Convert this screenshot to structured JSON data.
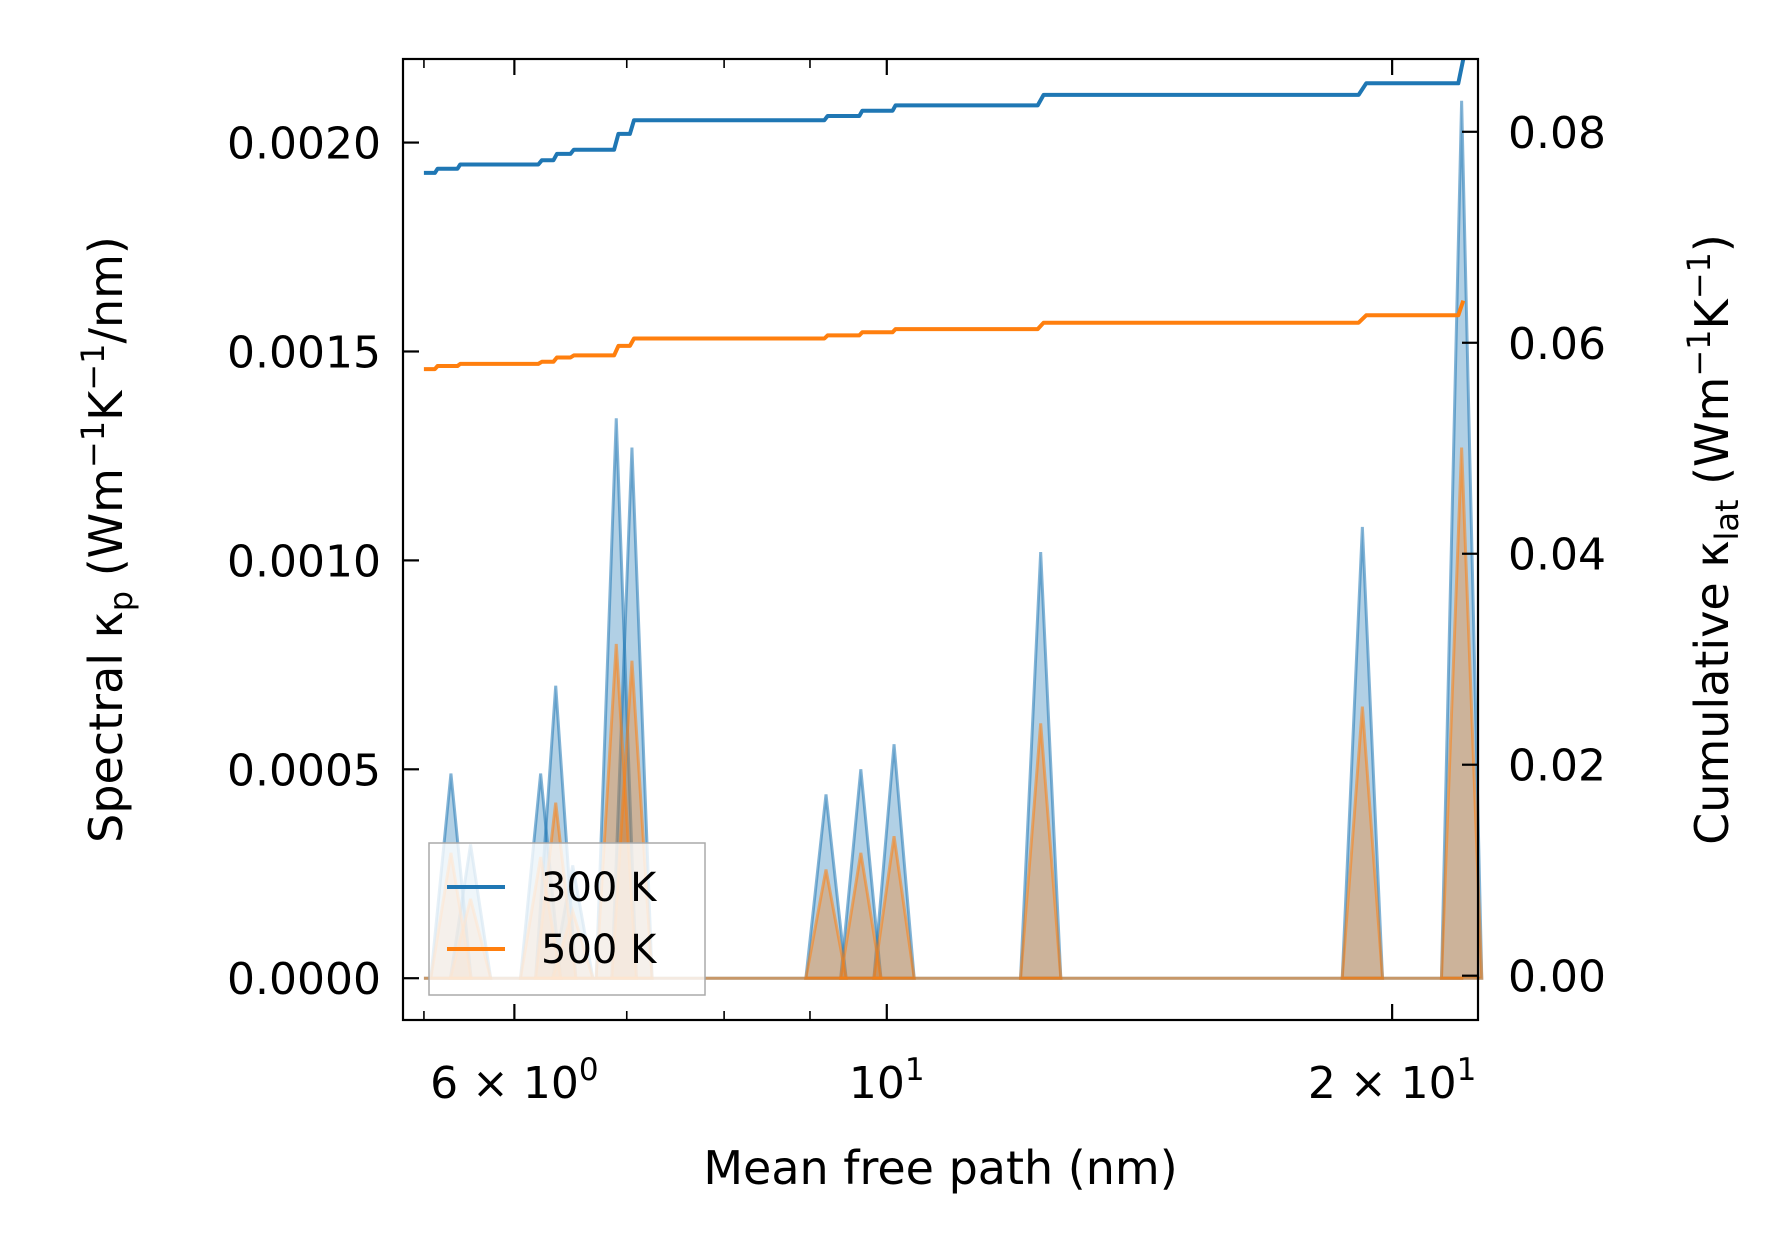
{
  "colors": {
    "series_300K": "#1f77b4",
    "series_500K": "#ff7f0e",
    "axes": "#000000",
    "background": "#ffffff"
  },
  "chart_data": {
    "type": "line",
    "xscale": "log",
    "xlabel": "Mean free path (nm)",
    "ylabel_left": "Spectral κ",
    "ylabel_left_sub": "p",
    "ylabel_left_units": "(Wm",
    "ylabel_left_units_rest": [
      "−1",
      "K",
      "−1",
      "/nm)"
    ],
    "ylabel_right": "Cumulative κ",
    "ylabel_right_sub": "lat",
    "ylabel_right_units": "(Wm",
    "ylabel_right_units_rest": [
      "−1",
      "K",
      "−1",
      ")"
    ],
    "xlim": [
      5.15,
      22.5
    ],
    "ylim_left": [
      -0.0001,
      0.0022
    ],
    "ylim_right": [
      -0.0042,
      0.0869
    ],
    "x_ticks": [
      {
        "value": 6,
        "base": "6 × 10",
        "exp": "0"
      },
      {
        "value": 10,
        "base": "10",
        "exp": "1"
      },
      {
        "value": 20,
        "base": "2 × 10",
        "exp": "1"
      }
    ],
    "x_minor_ticks": [
      5.3,
      7,
      8,
      9
    ],
    "y_left_ticks": [
      {
        "value": 0.0,
        "label": "0.0000"
      },
      {
        "value": 0.0005,
        "label": "0.0005"
      },
      {
        "value": 0.001,
        "label": "0.0010"
      },
      {
        "value": 0.0015,
        "label": "0.0015"
      },
      {
        "value": 0.002,
        "label": "0.0020"
      }
    ],
    "y_right_ticks": [
      {
        "value": 0.0,
        "label": "0.00"
      },
      {
        "value": 0.02,
        "label": "0.02"
      },
      {
        "value": 0.04,
        "label": "0.04"
      },
      {
        "value": 0.06,
        "label": "0.06"
      },
      {
        "value": 0.08,
        "label": "0.08"
      }
    ],
    "legend": {
      "location": "lower-left",
      "entries": [
        {
          "label": "300 K",
          "series": "300K"
        },
        {
          "label": "500 K",
          "series": "500K"
        }
      ]
    },
    "spectral_series": [
      {
        "name": "300 K",
        "key": "300K",
        "peaks": [
          {
            "x": 5.5,
            "y": 0.00049
          },
          {
            "x": 5.65,
            "y": 0.00032
          },
          {
            "x": 6.22,
            "y": 0.00049
          },
          {
            "x": 6.35,
            "y": 0.0007
          },
          {
            "x": 6.5,
            "y": 0.00027
          },
          {
            "x": 6.9,
            "y": 0.00134
          },
          {
            "x": 7.05,
            "y": 0.00127
          },
          {
            "x": 9.2,
            "y": 0.00044
          },
          {
            "x": 9.65,
            "y": 0.0005
          },
          {
            "x": 10.1,
            "y": 0.00056
          },
          {
            "x": 12.35,
            "y": 0.00102
          },
          {
            "x": 19.2,
            "y": 0.00108
          },
          {
            "x": 22.0,
            "y": 0.0021
          }
        ]
      },
      {
        "name": "500 K",
        "key": "500K",
        "peaks": [
          {
            "x": 5.5,
            "y": 0.0003
          },
          {
            "x": 5.65,
            "y": 0.00019
          },
          {
            "x": 6.22,
            "y": 0.00029
          },
          {
            "x": 6.35,
            "y": 0.00042
          },
          {
            "x": 6.5,
            "y": 0.00016
          },
          {
            "x": 6.9,
            "y": 0.0008
          },
          {
            "x": 7.05,
            "y": 0.00076
          },
          {
            "x": 9.2,
            "y": 0.00026
          },
          {
            "x": 9.65,
            "y": 0.0003
          },
          {
            "x": 10.1,
            "y": 0.00034
          },
          {
            "x": 12.35,
            "y": 0.00061
          },
          {
            "x": 19.2,
            "y": 0.00065
          },
          {
            "x": 22.0,
            "y": 0.00127
          }
        ]
      }
    ],
    "cumulative_series": [
      {
        "name": "300 K",
        "key": "300K",
        "points": [
          [
            5.3,
            0.0761
          ],
          [
            5.38,
            0.0761
          ],
          [
            5.4,
            0.0765
          ],
          [
            5.55,
            0.0765
          ],
          [
            5.57,
            0.0769
          ],
          [
            6.2,
            0.0769
          ],
          [
            6.23,
            0.0773
          ],
          [
            6.33,
            0.0773
          ],
          [
            6.36,
            0.0779
          ],
          [
            6.48,
            0.0779
          ],
          [
            6.51,
            0.0783
          ],
          [
            6.88,
            0.0783
          ],
          [
            6.92,
            0.0798
          ],
          [
            7.03,
            0.0798
          ],
          [
            7.07,
            0.0811
          ],
          [
            9.18,
            0.0811
          ],
          [
            9.22,
            0.0815
          ],
          [
            9.63,
            0.0815
          ],
          [
            9.67,
            0.082
          ],
          [
            10.08,
            0.082
          ],
          [
            10.12,
            0.0825
          ],
          [
            12.3,
            0.0825
          ],
          [
            12.4,
            0.0835
          ],
          [
            19.1,
            0.0835
          ],
          [
            19.3,
            0.0846
          ],
          [
            21.9,
            0.0846
          ],
          [
            22.05,
            0.0869
          ]
        ]
      },
      {
        "name": "500 K",
        "key": "500K",
        "points": [
          [
            5.3,
            0.0575
          ],
          [
            5.38,
            0.0575
          ],
          [
            5.4,
            0.0578
          ],
          [
            5.55,
            0.0578
          ],
          [
            5.57,
            0.058
          ],
          [
            6.2,
            0.058
          ],
          [
            6.23,
            0.0582
          ],
          [
            6.33,
            0.0582
          ],
          [
            6.36,
            0.0586
          ],
          [
            6.48,
            0.0586
          ],
          [
            6.51,
            0.0588
          ],
          [
            6.88,
            0.0588
          ],
          [
            6.92,
            0.0597
          ],
          [
            7.03,
            0.0597
          ],
          [
            7.07,
            0.0604
          ],
          [
            9.18,
            0.0604
          ],
          [
            9.22,
            0.0607
          ],
          [
            9.63,
            0.0607
          ],
          [
            9.67,
            0.061
          ],
          [
            10.08,
            0.061
          ],
          [
            10.12,
            0.0613
          ],
          [
            12.3,
            0.0613
          ],
          [
            12.4,
            0.0619
          ],
          [
            19.1,
            0.0619
          ],
          [
            19.3,
            0.0626
          ],
          [
            21.9,
            0.0626
          ],
          [
            22.05,
            0.064
          ]
        ]
      }
    ]
  }
}
